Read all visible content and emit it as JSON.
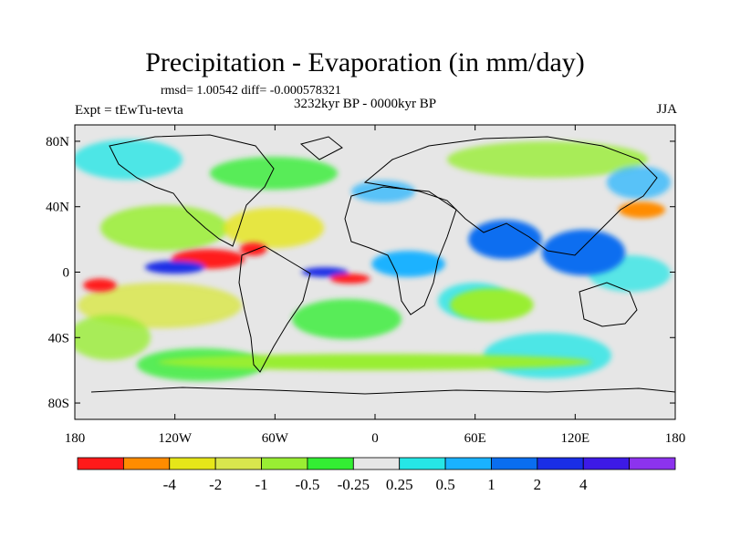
{
  "title": "Precipitation - Evaporation (in mm/day)",
  "stats": "rmsd= 1.00542 diff= -0.000578321",
  "experiment": "Expt = tEwTu-tevta",
  "period": "3232kyr BP - 0000kyr BP",
  "season": "JJA",
  "map": {
    "lon_range": [
      -180,
      180
    ],
    "lat_range": [
      -90,
      90
    ],
    "lat_ticks": [
      {
        "value": 80,
        "label": "80N"
      },
      {
        "value": 40,
        "label": "40N"
      },
      {
        "value": 0,
        "label": "0"
      },
      {
        "value": -40,
        "label": "40S"
      },
      {
        "value": -80,
        "label": "80S"
      }
    ],
    "lon_ticks": [
      {
        "value": -180,
        "label": "180"
      },
      {
        "value": -120,
        "label": "120W"
      },
      {
        "value": -60,
        "label": "60W"
      },
      {
        "value": 0,
        "label": "0"
      },
      {
        "value": 60,
        "label": "60E"
      },
      {
        "value": 120,
        "label": "120E"
      },
      {
        "value": 180,
        "label": "180"
      }
    ],
    "background_color": "#e6e6e6"
  },
  "colorbar": {
    "colors": [
      "#ff1a1a",
      "#ff8c00",
      "#e6e619",
      "#d9e64d",
      "#99ee33",
      "#33ee33",
      "#e6e6e6",
      "#26e6e6",
      "#1ab2ff",
      "#0a6ef0",
      "#1a2ee6",
      "#3d1ae6",
      "#8c33ee"
    ],
    "labels": [
      "-4",
      "-2",
      "-1",
      "-0.5",
      "-0.25",
      "0.25",
      "0.5",
      "1",
      "2",
      "4"
    ]
  },
  "chart_data": {
    "type": "heatmap",
    "variable": "Precipitation - Evaporation difference",
    "units": "mm/day",
    "levels": [
      -4,
      -2,
      -1,
      -0.5,
      -0.25,
      0.25,
      0.5,
      1,
      2,
      4
    ],
    "regions": [
      {
        "name": "tropical-east-pacific-red",
        "lon": -100,
        "lat": 8,
        "value": -5,
        "rx_deg": 22,
        "ry_deg": 6
      },
      {
        "name": "caribbean-red",
        "lon": -73,
        "lat": 14,
        "value": -4.5,
        "rx_deg": 8,
        "ry_deg": 4
      },
      {
        "name": "pacific-itcz-purple",
        "lon": -120,
        "lat": 3,
        "value": 5,
        "rx_deg": 18,
        "ry_deg": 4
      },
      {
        "name": "atlantic-itcz-purple",
        "lon": -30,
        "lat": 0,
        "value": 4.5,
        "rx_deg": 14,
        "ry_deg": 3
      },
      {
        "name": "south-pacific-red",
        "lon": -165,
        "lat": -8,
        "value": -4.5,
        "rx_deg": 10,
        "ry_deg": 4
      },
      {
        "name": "south-atlantic-red",
        "lon": -15,
        "lat": -4,
        "value": -4.5,
        "rx_deg": 12,
        "ry_deg": 3
      },
      {
        "name": "india-monsoon-blue",
        "lon": 78,
        "lat": 20,
        "value": 2.5,
        "rx_deg": 22,
        "ry_deg": 12
      },
      {
        "name": "west-pacific-blue",
        "lon": 125,
        "lat": 12,
        "value": 2.5,
        "rx_deg": 25,
        "ry_deg": 14
      },
      {
        "name": "central-africa-blue",
        "lon": 20,
        "lat": 5,
        "value": 1.5,
        "rx_deg": 22,
        "ry_deg": 8
      },
      {
        "name": "nw-pacific-orange",
        "lon": 160,
        "lat": 38,
        "value": -3,
        "rx_deg": 14,
        "ry_deg": 5
      },
      {
        "name": "south-indian-green",
        "lon": 70,
        "lat": -20,
        "value": -0.5,
        "rx_deg": 25,
        "ry_deg": 10
      },
      {
        "name": "southern-ocean-green",
        "lon": 0,
        "lat": -55,
        "value": -0.4,
        "rx_deg": 130,
        "ry_deg": 5
      }
    ]
  }
}
